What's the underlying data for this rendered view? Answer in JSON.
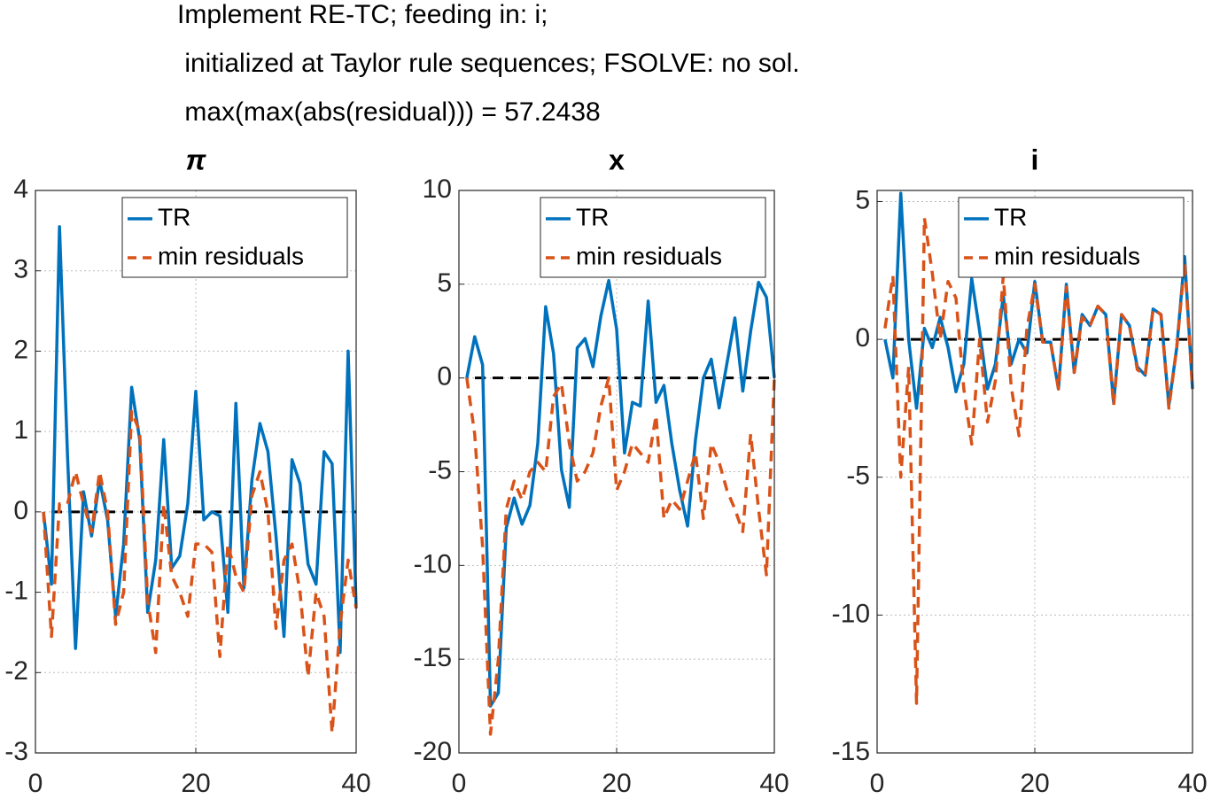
{
  "suptitle": [
    "Implement RE-TC; feeding in: i;",
    " initialized at Taylor rule sequences; FSOLVE: no sol.",
    " max(max(abs(residual))) = 57.2438"
  ],
  "chart_data": [
    {
      "type": "line",
      "title": "π",
      "x": [
        1,
        2,
        3,
        4,
        5,
        6,
        7,
        8,
        9,
        10,
        11,
        12,
        13,
        14,
        15,
        16,
        17,
        18,
        19,
        20,
        21,
        22,
        23,
        24,
        25,
        26,
        27,
        28,
        29,
        30,
        31,
        32,
        33,
        34,
        35,
        36,
        37,
        38,
        39,
        40
      ],
      "series": [
        {
          "name": "TR",
          "color": "#0072bd",
          "dash": "solid",
          "values": [
            0,
            -0.9,
            3.55,
            0.7,
            -1.7,
            0.25,
            -0.3,
            0.4,
            -0.1,
            -1.3,
            -0.4,
            1.55,
            0.9,
            -1.25,
            -0.6,
            0.9,
            -0.7,
            -0.55,
            0.1,
            1.5,
            -0.1,
            0,
            -0.05,
            -1.25,
            1.35,
            -0.95,
            0.4,
            1.1,
            0.75,
            -0.3,
            -1.55,
            0.65,
            0.35,
            -0.65,
            -0.9,
            0.75,
            0.6,
            -1.75,
            2.0,
            -1.2
          ]
        },
        {
          "name": "min residuals",
          "color": "#d95319",
          "dash": "dashed",
          "values": [
            0,
            -1.55,
            0.1,
            0.1,
            0.5,
            0.1,
            -0.25,
            0.5,
            0,
            -1.4,
            -1.0,
            1.25,
            1.0,
            -1.1,
            -1.75,
            0.1,
            -0.8,
            -1.0,
            -1.3,
            -0.4,
            -0.4,
            -0.5,
            -1.8,
            -0.4,
            -0.8,
            -1.0,
            0.2,
            0.5,
            0,
            -1.45,
            -0.6,
            -0.4,
            -1.0,
            -2.05,
            -1.0,
            -1.3,
            -2.75,
            -1.4,
            -0.6,
            -1.2
          ]
        }
      ],
      "hline": 0,
      "xlim": [
        0,
        40
      ],
      "ylim": [
        -3,
        4
      ],
      "xticks": [
        0,
        20,
        40
      ],
      "yticks": [
        -3,
        -2,
        -1,
        0,
        1,
        2,
        3,
        4
      ],
      "grid": true,
      "legend": "upper right"
    },
    {
      "type": "line",
      "title": "x",
      "x": [
        1,
        2,
        3,
        4,
        5,
        6,
        7,
        8,
        9,
        10,
        11,
        12,
        13,
        14,
        15,
        16,
        17,
        18,
        19,
        20,
        21,
        22,
        23,
        24,
        25,
        26,
        27,
        28,
        29,
        30,
        31,
        32,
        33,
        34,
        35,
        36,
        37,
        38,
        39,
        40
      ],
      "series": [
        {
          "name": "TR",
          "color": "#0072bd",
          "dash": "solid",
          "values": [
            0,
            2.2,
            0.7,
            -17.5,
            -16.8,
            -8,
            -6.4,
            -7.8,
            -6.8,
            -3.5,
            3.8,
            1.3,
            -4.9,
            -6.9,
            1.6,
            2.1,
            0.6,
            3.3,
            5.2,
            2.6,
            -4,
            -1.3,
            -1.5,
            4.1,
            -1.3,
            -0.4,
            -3.5,
            -6,
            -7.9,
            -3.3,
            0,
            1,
            -1.6,
            0.8,
            3.2,
            -0.7,
            2.5,
            5.1,
            4.3,
            0
          ]
        },
        {
          "name": "min residuals",
          "color": "#d95319",
          "dash": "dashed",
          "values": [
            0,
            -3,
            -9,
            -19,
            -15,
            -7,
            -5.5,
            -6.5,
            -5,
            -4.5,
            -5,
            -1,
            -0.3,
            -3.5,
            -5.5,
            -5,
            -4,
            -1.5,
            0,
            -6,
            -5,
            -3.5,
            -4,
            -4.5,
            -2,
            -7.5,
            -6.5,
            -7,
            -5.5,
            -4,
            -7.5,
            -3.5,
            -4.5,
            -6,
            -7,
            -8.2,
            -3,
            -7,
            -10.5,
            0
          ]
        }
      ],
      "hline": 0,
      "xlim": [
        0,
        40
      ],
      "ylim": [
        -20,
        10
      ],
      "xticks": [
        0,
        20,
        40
      ],
      "yticks": [
        -20,
        -15,
        -10,
        -5,
        0,
        5,
        10
      ],
      "grid": true,
      "legend": "upper right"
    },
    {
      "type": "line",
      "title": "i",
      "x": [
        1,
        2,
        3,
        4,
        5,
        6,
        7,
        8,
        9,
        10,
        11,
        12,
        13,
        14,
        15,
        16,
        17,
        18,
        19,
        20,
        21,
        22,
        23,
        24,
        25,
        26,
        27,
        28,
        29,
        30,
        31,
        32,
        33,
        34,
        35,
        36,
        37,
        38,
        39,
        40
      ],
      "series": [
        {
          "name": "TR",
          "color": "#0072bd",
          "dash": "solid",
          "values": [
            0,
            -1.4,
            5.3,
            0,
            -2.5,
            0.4,
            -0.3,
            0.8,
            -0.3,
            -1.9,
            -0.9,
            2.2,
            0.3,
            -1.8,
            -0.9,
            1.6,
            -0.9,
            0,
            -0.5,
            2.1,
            -0.1,
            -0.1,
            -1.8,
            2.0,
            -1.2,
            0.9,
            0.5,
            1.2,
            0.9,
            -2.3,
            0.9,
            0.5,
            -1,
            -1.3,
            1.1,
            0.9,
            -2.4,
            -0.3,
            3,
            -1.8
          ]
        },
        {
          "name": "min residuals",
          "color": "#d95319",
          "dash": "dashed",
          "values": [
            0.4,
            2.3,
            -5,
            -1,
            -13.2,
            4.4,
            2.4,
            0,
            2.1,
            1.5,
            -1.8,
            -3.8,
            0,
            -3,
            -1.5,
            2.3,
            -1.7,
            -3.5,
            0.4,
            2,
            -0.1,
            -0.1,
            -1.8,
            1.9,
            -1.2,
            0.8,
            0.5,
            1.2,
            0.9,
            -2.4,
            0.9,
            0.5,
            -1.1,
            -1.3,
            1.1,
            0.9,
            -2.5,
            -0.3,
            2.8,
            -1.8
          ]
        }
      ],
      "hline": 0,
      "xlim": [
        0,
        40
      ],
      "ylim": [
        -15,
        5.4
      ],
      "xticks": [
        0,
        20,
        40
      ],
      "yticks": [
        -15,
        -10,
        -5,
        0,
        5
      ],
      "grid": true,
      "legend": "upper right"
    }
  ]
}
